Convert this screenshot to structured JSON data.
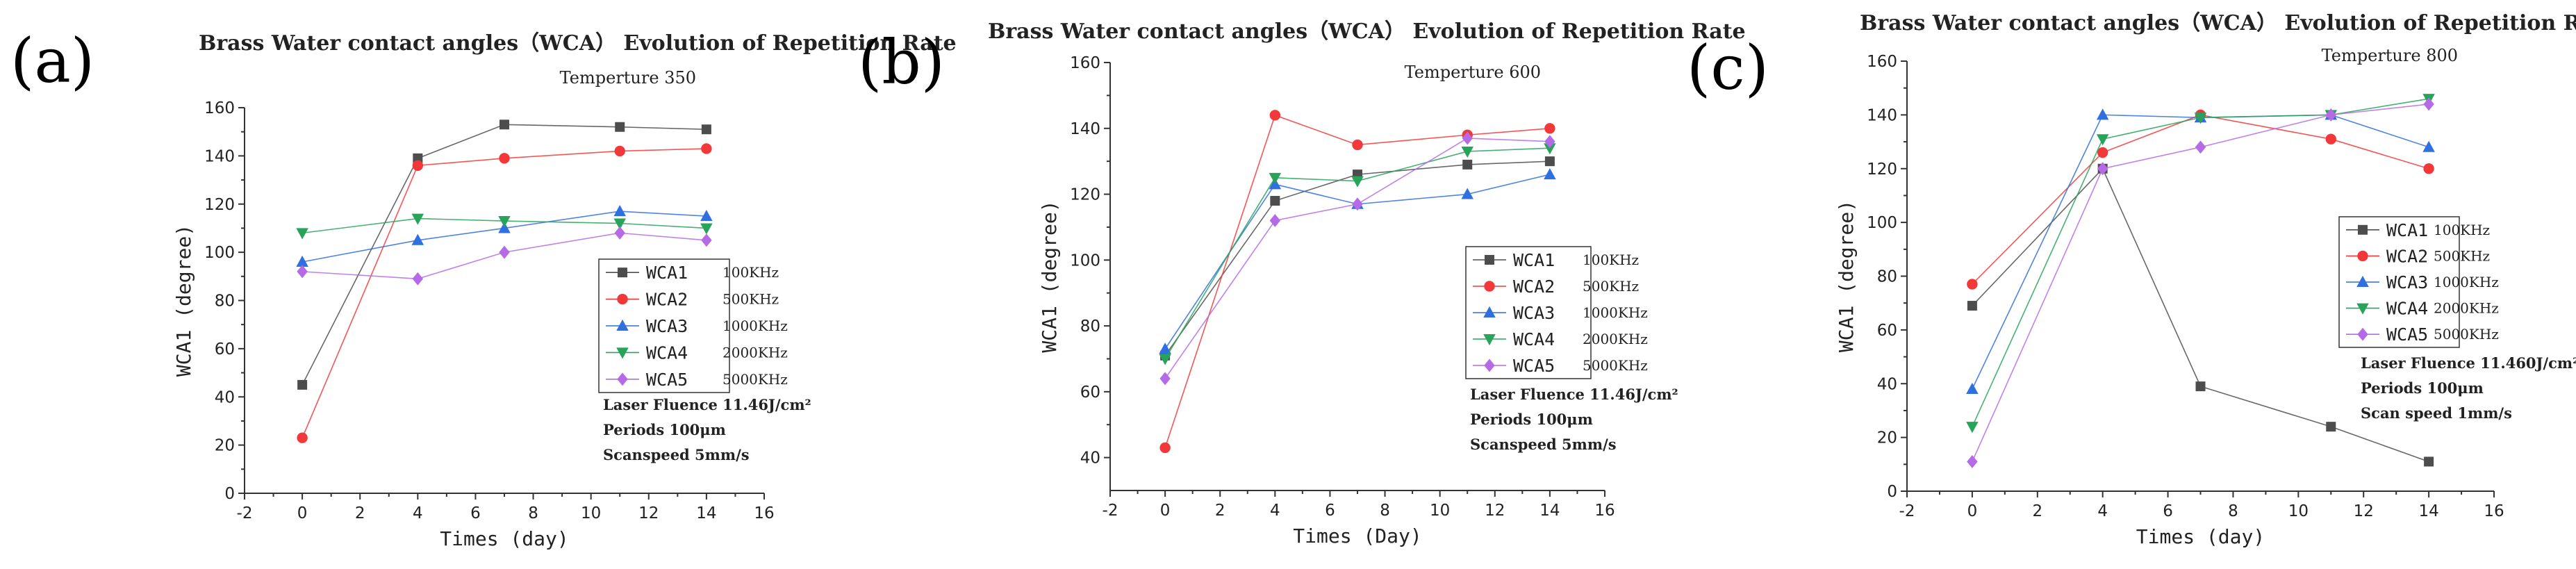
{
  "chart_data": [
    {
      "panel": "(a)",
      "type": "line",
      "title": "Brass Water contact angles（WCA） Evolution of Repetition Rate",
      "temperature": "Temperture 350",
      "xlabel": "Times (day)",
      "ylabel": "WCA1 (degree)",
      "xlim": [
        -2,
        16
      ],
      "ylim": [
        0,
        160
      ],
      "xticks": [
        -2,
        0,
        2,
        4,
        6,
        8,
        10,
        12,
        14,
        16
      ],
      "yticks": [
        0,
        20,
        40,
        60,
        80,
        100,
        120,
        140,
        160
      ],
      "x": [
        0,
        4,
        7,
        11,
        14
      ],
      "series": [
        {
          "name": "WCA1",
          "freq": "100KHz",
          "color": "#4d4d4d",
          "marker": "square",
          "values": [
            45,
            139,
            153,
            152,
            151
          ]
        },
        {
          "name": "WCA2",
          "freq": "500KHz",
          "color": "#f23838",
          "marker": "circle",
          "values": [
            23,
            136,
            139,
            142,
            143
          ]
        },
        {
          "name": "WCA3",
          "freq": "1000KHz",
          "color": "#2f6fe0",
          "marker": "triangle-up",
          "values": [
            96,
            105,
            110,
            117,
            115
          ]
        },
        {
          "name": "WCA4",
          "freq": "2000KHz",
          "color": "#27a35a",
          "marker": "triangle-down",
          "values": [
            108,
            114,
            113,
            112,
            110
          ]
        },
        {
          "name": "WCA5",
          "freq": "5000KHz",
          "color": "#b56be6",
          "marker": "diamond",
          "values": [
            92,
            89,
            100,
            108,
            105
          ]
        }
      ],
      "annotations": [
        "Laser Fluence 11.46J/cm²",
        "Periods 100μm",
        "Scanspeed 5mm/s"
      ]
    },
    {
      "panel": "(b)",
      "type": "line",
      "title": "Brass Water contact angles（WCA） Evolution of Repetition Rate",
      "temperature": "Temperture 600",
      "xlabel": "Times (Day)",
      "ylabel": "WCA1 (degree)",
      "xlim": [
        -2,
        16
      ],
      "ylim": [
        30,
        160
      ],
      "xticks": [
        -2,
        0,
        2,
        4,
        6,
        8,
        10,
        12,
        14,
        16
      ],
      "yticks": [
        40,
        60,
        80,
        100,
        120,
        140,
        160
      ],
      "x": [
        0,
        4,
        7,
        11,
        14
      ],
      "series": [
        {
          "name": "WCA1",
          "freq": "100KHz",
          "color": "#4d4d4d",
          "marker": "square",
          "values": [
            71,
            118,
            126,
            129,
            130
          ]
        },
        {
          "name": "WCA2",
          "freq": "500KHz",
          "color": "#f23838",
          "marker": "circle",
          "values": [
            43,
            144,
            135,
            138,
            140
          ]
        },
        {
          "name": "WCA3",
          "freq": "1000KHz",
          "color": "#2f6fe0",
          "marker": "triangle-up",
          "values": [
            73,
            123,
            117,
            120,
            126
          ]
        },
        {
          "name": "WCA4",
          "freq": "2000KHz",
          "color": "#27a35a",
          "marker": "triangle-down",
          "values": [
            70,
            125,
            124,
            133,
            134
          ]
        },
        {
          "name": "WCA5",
          "freq": "5000KHz",
          "color": "#b56be6",
          "marker": "diamond",
          "values": [
            64,
            112,
            117,
            137,
            136
          ]
        }
      ],
      "annotations": [
        "Laser Fluence 11.46J/cm²",
        "Periods 100μm",
        "Scanspeed 5mm/s"
      ]
    },
    {
      "panel": "(c)",
      "type": "line",
      "title": "Brass Water contact angles（WCA） Evolution of Repetition Rate",
      "temperature": "Temperture 800",
      "xlabel": "Times (day)",
      "ylabel": "WCA1 (degree)",
      "xlim": [
        -2,
        16
      ],
      "ylim": [
        0,
        160
      ],
      "xticks": [
        -2,
        0,
        2,
        4,
        6,
        8,
        10,
        12,
        14,
        16
      ],
      "yticks": [
        0,
        20,
        40,
        60,
        80,
        100,
        120,
        140,
        160
      ],
      "x": [
        0,
        4,
        7,
        11,
        14
      ],
      "series": [
        {
          "name": "WCA1",
          "freq": "100KHz",
          "color": "#4d4d4d",
          "marker": "square",
          "values": [
            69,
            120,
            39,
            24,
            11
          ]
        },
        {
          "name": "WCA2",
          "freq": "500KHz",
          "color": "#f23838",
          "marker": "circle",
          "values": [
            77,
            126,
            140,
            131,
            120
          ]
        },
        {
          "name": "WCA3",
          "freq": "1000KHz",
          "color": "#2f6fe0",
          "marker": "triangle-up",
          "values": [
            38,
            140,
            139,
            140,
            128
          ]
        },
        {
          "name": "WCA4",
          "freq": "2000KHz",
          "color": "#27a35a",
          "marker": "triangle-down",
          "values": [
            24,
            131,
            139,
            140,
            146
          ]
        },
        {
          "name": "WCA5",
          "freq": "5000KHz",
          "color": "#b56be6",
          "marker": "diamond",
          "values": [
            11,
            120,
            128,
            140,
            144
          ]
        }
      ],
      "annotations": [
        "Laser Fluence 11.460J/cm²",
        "Periods  100μm",
        "Scan speed 1mm/s"
      ]
    }
  ]
}
